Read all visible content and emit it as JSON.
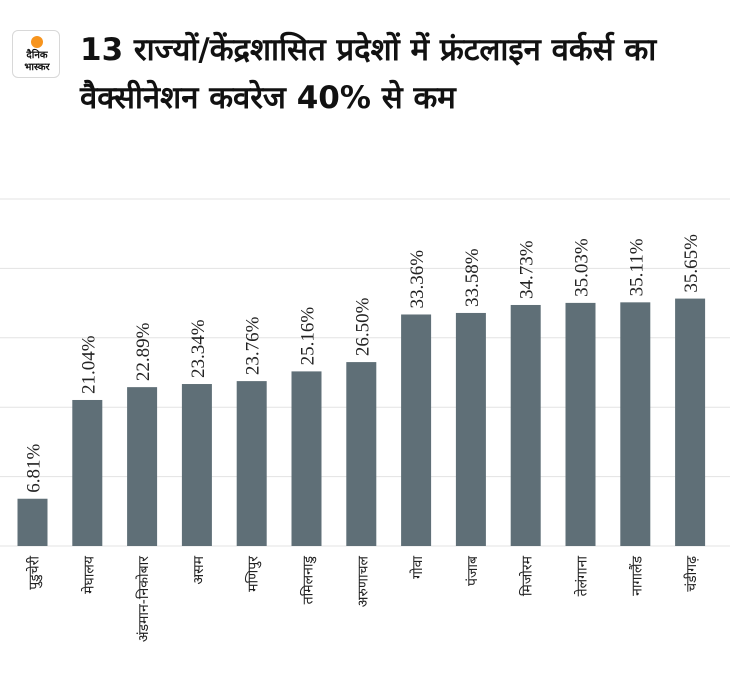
{
  "header": {
    "logo_line1": "दैनिक",
    "logo_line2": "भास्कर",
    "logo_accent_color": "#f7941d",
    "title": "13 राज्यों/केंद्रशासित प्रदेशों में फ्रंटलाइन वर्कर्स का वैक्सीनेशन कवरेज 40% से कम"
  },
  "chart_data": {
    "type": "bar",
    "title": "13 राज्यों/केंद्रशासित प्रदेशों में फ्रंटलाइन वर्कर्स का वैक्सीनेशन कवरेज 40% से कम",
    "xlabel": "",
    "ylabel": "",
    "categories": [
      "पुडुचेरी",
      "मेघालय",
      "अंडमान-निकोबार",
      "असम",
      "मणिपुर",
      "तमिलनाडु",
      "अरुणाचल",
      "गोवा",
      "पंजाब",
      "मिजोरम",
      "तेलंगाना",
      "नागालैंड",
      "चंडीगढ़"
    ],
    "values": [
      6.81,
      21.04,
      22.89,
      23.34,
      23.76,
      25.16,
      26.5,
      33.36,
      33.58,
      34.73,
      35.03,
      35.11,
      35.65
    ],
    "data_labels": [
      "6.81%",
      "21.04%",
      "22.89%",
      "23.34%",
      "23.76%",
      "25.16%",
      "26.50%",
      "33.36%",
      "33.58%",
      "34.73%",
      "35.03%",
      "35.11%",
      "35.65%"
    ],
    "ylim": [
      0,
      50
    ],
    "grid": true,
    "bar_color": "#5f6f77",
    "grid_color": "#e3e3e3"
  }
}
